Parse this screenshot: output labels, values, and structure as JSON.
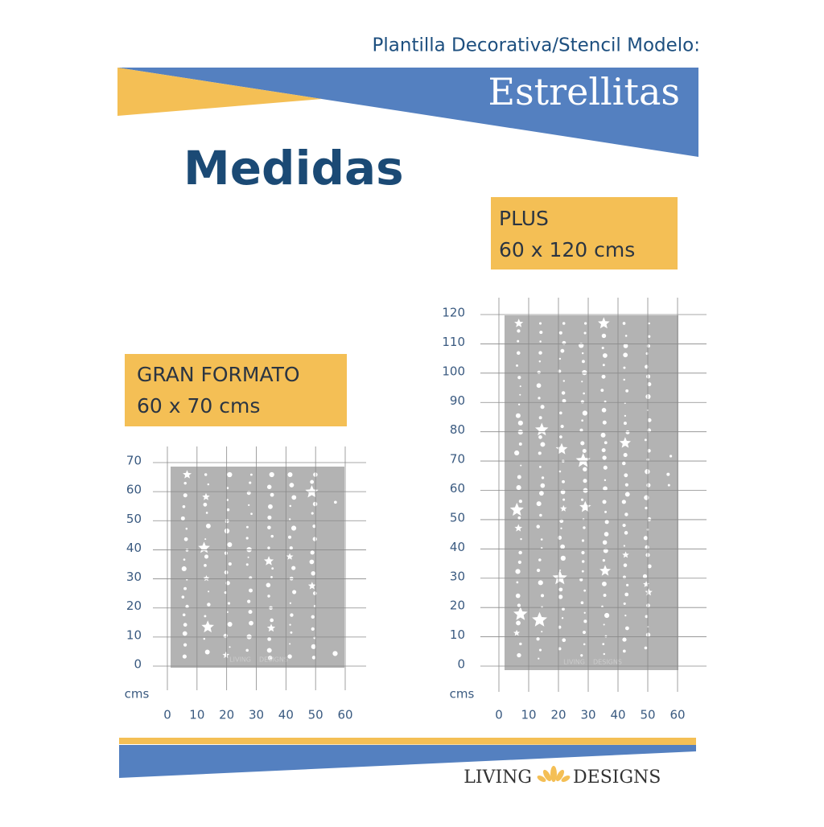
{
  "header": {
    "subtitle": "Plantilla Decorativa/Stencil Modelo:",
    "title": "Estrellitas"
  },
  "heading": "Medidas",
  "stencils": [
    {
      "name": "GRAN FORMATO",
      "size": "60 x 70 cms",
      "unit": "cms",
      "xticks": [
        0,
        10,
        20,
        30,
        40,
        50,
        60
      ],
      "yticks": [
        0,
        10,
        20,
        30,
        40,
        50,
        60,
        70
      ]
    },
    {
      "name": "PLUS",
      "size": "60 x 120 cms",
      "unit": "cms",
      "xticks": [
        0,
        10,
        20,
        30,
        40,
        50,
        60
      ],
      "yticks": [
        0,
        10,
        20,
        30,
        40,
        50,
        60,
        70,
        80,
        90,
        100,
        110,
        120
      ]
    }
  ],
  "brand": {
    "left": "LIVING",
    "right": "DESIGNS"
  }
}
